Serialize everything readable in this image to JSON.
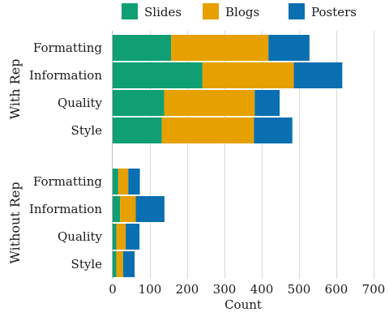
{
  "chart_data": {
    "type": "bar",
    "orientation": "horizontal",
    "stacked": true,
    "xlabel": "Count",
    "xlim": [
      0,
      700
    ],
    "xticks": [
      0,
      100,
      200,
      300,
      400,
      500,
      600,
      700
    ],
    "grid": "vertical",
    "legend": "top",
    "colors": {
      "Slides": "#109e73",
      "Blogs": "#e6a000",
      "Posters": "#0a6fb0"
    },
    "legend_entries": [
      "Slides",
      "Blogs",
      "Posters"
    ],
    "groups": [
      {
        "name": "With Rep",
        "categories": [
          "Formatting",
          "Information",
          "Quality",
          "Style"
        ],
        "series": [
          {
            "name": "Slides",
            "values": [
              157,
              241,
              138,
              132
            ]
          },
          {
            "name": "Blogs",
            "values": [
              261,
              245,
              243,
              247
            ]
          },
          {
            "name": "Posters",
            "values": [
              110,
              130,
              67,
              103
            ]
          }
        ]
      },
      {
        "name": "Without Rep",
        "categories": [
          "Formatting",
          "Information",
          "Quality",
          "Style"
        ],
        "series": [
          {
            "name": "Slides",
            "values": [
              15,
              20,
              10,
              10
            ]
          },
          {
            "name": "Blogs",
            "values": [
              27,
              42,
              25,
              18
            ]
          },
          {
            "name": "Posters",
            "values": [
              31,
              77,
              37,
              31
            ]
          }
        ]
      }
    ]
  }
}
